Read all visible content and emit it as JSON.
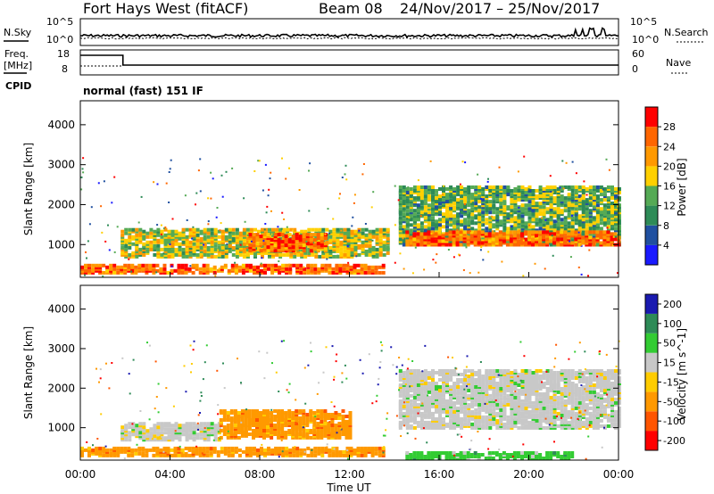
{
  "header": {
    "title": "Fort Hays West (fitACF)",
    "beam_label": "Beam 08",
    "date_range": "24/Nov/2017 – 25/Nov/2017"
  },
  "summary": {
    "nsky_label": "N.Sky",
    "nsky_ticks": [
      "10^5",
      "10^0"
    ],
    "nsearch_label": "N.Search",
    "nsearch_ticks": [
      "10^5",
      "10^0"
    ],
    "freq_label_1": "Freq.",
    "freq_label_2": "[MHz]",
    "freq_ticks": [
      "18",
      "8"
    ],
    "nave_label": "Nave",
    "nave_ticks": [
      "60",
      "0"
    ],
    "cpid_label": "CPID",
    "cpid_text": "normal (fast) 151 IF"
  },
  "colors": {
    "power": [
      "#1a1aff",
      "#2050a0",
      "#2e8b57",
      "#55aa55",
      "#ffd000",
      "#ff9900",
      "#ff6600",
      "#ff0000"
    ],
    "velocity": [
      "#ff0000",
      "#ff5500",
      "#ff9900",
      "#ffcc00",
      "#c8c8c8",
      "#33cc33",
      "#2e8b57",
      "#1a1ab0"
    ]
  },
  "chart_data": [
    {
      "type": "heatmap",
      "title": "Power",
      "ylabel": "Slant Range [km]",
      "xlabel": "",
      "x_ticks": [
        "00:00",
        "04:00",
        "08:00",
        "12:00",
        "16:00",
        "20:00",
        "00:00"
      ],
      "xlim_hours": [
        0,
        24
      ],
      "ylim_km": [
        180,
        4600
      ],
      "y_ticks": [
        1000,
        2000,
        3000,
        4000
      ],
      "colorbar_label": "Power [dB]",
      "colorbar_ticks": [
        4,
        8,
        12,
        16,
        20,
        24,
        28
      ],
      "colorbar_range": [
        0,
        32
      ],
      "regions": [
        {
          "t_start": 1.8,
          "t_end": 13.8,
          "r_start": 650,
          "r_end": 1350,
          "level": "medium-high"
        },
        {
          "t_start": 7.5,
          "t_end": 11.0,
          "r_start": 800,
          "r_end": 1250,
          "level": "high"
        },
        {
          "t_start": 0.0,
          "t_end": 13.5,
          "r_start": 250,
          "r_end": 450,
          "level": "high"
        },
        {
          "t_start": 14.2,
          "t_end": 24.0,
          "r_start": 950,
          "r_end": 2400,
          "level": "medium"
        },
        {
          "t_start": 14.5,
          "t_end": 24.0,
          "r_start": 950,
          "r_end": 1300,
          "level": "high"
        }
      ]
    },
    {
      "type": "heatmap",
      "title": "Velocity",
      "ylabel": "Slant Range [km]",
      "xlabel": "Time UT",
      "x_ticks": [
        "00:00",
        "04:00",
        "08:00",
        "12:00",
        "16:00",
        "20:00",
        "00:00"
      ],
      "xlim_hours": [
        0,
        24
      ],
      "ylim_km": [
        180,
        4600
      ],
      "y_ticks": [
        1000,
        2000,
        3000,
        4000
      ],
      "colorbar_label": "Velocity [m s^-1]",
      "colorbar_ticks": [
        "200",
        "100",
        "50",
        "15",
        "-15",
        "-50",
        "-100",
        "-200"
      ],
      "regions": [
        {
          "t_start": 1.8,
          "t_end": 6.2,
          "r_start": 650,
          "r_end": 1100,
          "value": "-15 to 15"
        },
        {
          "t_start": 6.2,
          "t_end": 12.0,
          "r_start": 700,
          "r_end": 1400,
          "value": "-50 to -100"
        },
        {
          "t_start": 0.0,
          "t_end": 13.5,
          "r_start": 250,
          "r_end": 450,
          "value": "-50 to -100"
        },
        {
          "t_start": 14.2,
          "t_end": 24.0,
          "r_start": 950,
          "r_end": 2400,
          "value": "-15 to 15"
        },
        {
          "t_start": 14.5,
          "t_end": 22.0,
          "r_start": 180,
          "r_end": 350,
          "value": "15 to 50"
        }
      ]
    }
  ]
}
